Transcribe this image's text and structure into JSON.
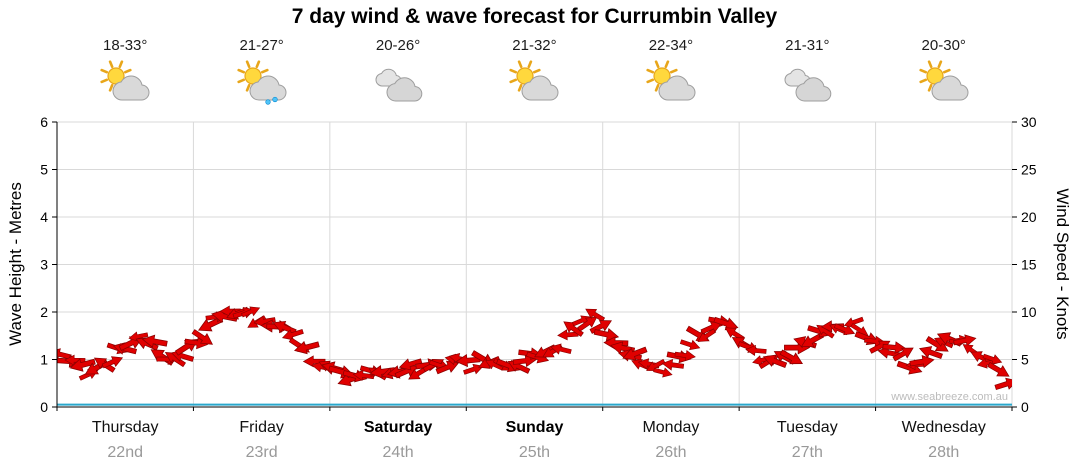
{
  "title": "7 day wind & wave forecast for Currumbin Valley",
  "watermark": "www.seabreeze.com.au",
  "days": [
    {
      "name": "Thursday",
      "date": "22nd",
      "temp": "18-33°",
      "icon": "sun-cloud",
      "weekend": false
    },
    {
      "name": "Friday",
      "date": "23rd",
      "temp": "21-27°",
      "icon": "sun-cloud-rain",
      "weekend": false
    },
    {
      "name": "Saturday",
      "date": "24th",
      "temp": "20-26°",
      "icon": "clouds",
      "weekend": true
    },
    {
      "name": "Sunday",
      "date": "25th",
      "temp": "21-32°",
      "icon": "sun-cloud",
      "weekend": true
    },
    {
      "name": "Monday",
      "date": "26th",
      "temp": "22-34°",
      "icon": "sun-cloud",
      "weekend": false
    },
    {
      "name": "Tuesday",
      "date": "27th",
      "temp": "21-31°",
      "icon": "clouds",
      "weekend": false
    },
    {
      "name": "Wednesday",
      "date": "28th",
      "temp": "20-30°",
      "icon": "sun-cloud",
      "weekend": false
    }
  ],
  "chart_data": {
    "type": "area",
    "title": "7 day wind & wave forecast for Currumbin Valley",
    "x_categories": [
      "Thursday 22nd",
      "Friday 23rd",
      "Saturday 24th",
      "Sunday 25th",
      "Monday 26th",
      "Tuesday 27th",
      "Wednesday 28th"
    ],
    "points_per_day": 8,
    "left_axis": {
      "label": "Wave Height - Metres",
      "range": [
        0,
        6
      ],
      "ticks": [
        0,
        1,
        2,
        3,
        4,
        5,
        6
      ]
    },
    "right_axis": {
      "label": "Wind Speed - Knots",
      "range": [
        0,
        30
      ],
      "ticks": [
        0,
        5,
        10,
        15,
        20,
        25,
        30
      ]
    },
    "grid": true,
    "legend": "none",
    "series": [
      {
        "name": "Wind Speed",
        "unit": "knots",
        "axis": "right",
        "style": "wind-arrows",
        "color": "#e00000",
        "values": [
          5.2,
          4.6,
          3.8,
          5.0,
          6.2,
          7.4,
          5.6,
          5.0,
          7.0,
          9.4,
          10.4,
          9.8,
          9.0,
          8.4,
          6.8,
          5.0,
          3.6,
          3.2,
          3.8,
          3.4,
          4.2,
          3.8,
          4.4,
          4.8,
          4.2,
          4.8,
          4.0,
          5.2,
          5.6,
          6.4,
          8.6,
          9.6,
          7.0,
          5.8,
          4.4,
          3.9,
          5.4,
          7.2,
          8.6,
          8.0,
          5.6,
          4.8,
          5.4,
          6.6,
          7.8,
          8.4,
          8.8,
          6.4,
          6.2,
          4.6,
          5.2,
          6.8,
          7.0,
          5.8,
          4.4,
          2.4
        ]
      },
      {
        "name": "Wave Height",
        "unit": "metres",
        "axis": "left",
        "style": "line",
        "color": "#2aa8cc",
        "values": [
          0.05,
          0.05,
          0.05,
          0.05,
          0.05,
          0.05,
          0.05
        ]
      }
    ]
  },
  "colors": {
    "wind_red": "#e00000",
    "wind_red_outline": "#8b0000",
    "wave_blue": "#2aa8cc",
    "grid": "#d9d9d9",
    "axis": "#000000",
    "date_gray": "#999999",
    "watermark_gray": "#bcbcbc"
  }
}
